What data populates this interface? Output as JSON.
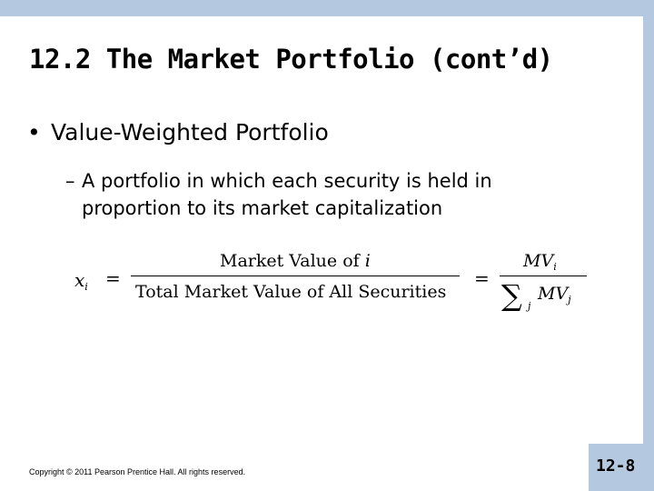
{
  "slide": {
    "title": "12.2 The Market Portfolio (cont’d)",
    "bullet": {
      "marker": "•",
      "text": "Value-Weighted Portfolio"
    },
    "sub_bullet": {
      "marker": "–",
      "text": "A portfolio in which each security is held in proportion to its market capitalization"
    },
    "formula": {
      "lhs_var": "x",
      "lhs_sub": "i",
      "eq1": "=",
      "numerator_text": "Market Value of",
      "numerator_var": "i",
      "denominator": "Total Market Value of All Securities",
      "eq2": "=",
      "rhs_numerator_var": "MV",
      "rhs_numerator_sub": "i",
      "sum_symbol": "∑",
      "sum_sub": "j",
      "rhs_denominator_var": "MV",
      "rhs_denominator_sub": "j"
    },
    "copyright": "Copyright © 2011 Pearson Prentice Hall. All rights reserved.",
    "page_number": "12-8"
  },
  "colors": {
    "frame": "#b4c9e0",
    "slide_background": "#ffffff",
    "text": "#000000"
  }
}
